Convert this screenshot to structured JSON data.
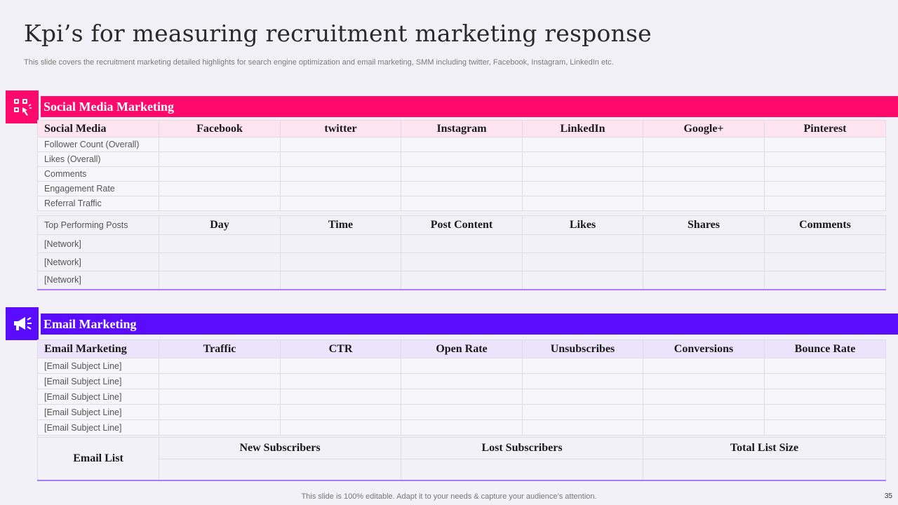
{
  "title": "Kpi’s for measuring recruitment marketing response",
  "subtitle": "This slide covers the recruitment marketing detailed highlights for search engine optimization and email marketing, SMM  including twitter, Facebook, Instagram, LinkedIn etc.",
  "social": {
    "section_label": "Social Media Marketing",
    "icon": "social-network-icon",
    "color": "#ff0a6c",
    "headers": [
      "Social Media",
      "Facebook",
      "twitter",
      "Instagram",
      "LinkedIn",
      "Google+",
      "Pinterest"
    ],
    "rows": [
      "Follower Count (Overall)",
      "Likes (Overall)",
      "Comments",
      "Engagement  Rate",
      "Referral  Traffic"
    ]
  },
  "top_posts": {
    "headers": [
      "Top Performing Posts",
      "Day",
      "Time",
      "Post Content",
      "Likes",
      "Shares",
      "Comments"
    ],
    "rows": [
      "[Network]",
      "[Network]",
      "[Network]"
    ]
  },
  "email": {
    "section_label": "Email Marketing",
    "icon": "megaphone-icon",
    "color": "#5a0cff",
    "headers": [
      "Email Marketing",
      "Traffic",
      "CTR",
      "Open Rate",
      "Unsubscribes",
      "Conversions",
      "Bounce Rate"
    ],
    "rows": [
      "[Email Subject Line]",
      "[Email Subject Line]",
      "[Email Subject Line]",
      "[Email Subject Line]",
      "[Email Subject Line]"
    ]
  },
  "email_list": {
    "label": "Email List",
    "headers": [
      "New Subscribers",
      "Lost Subscribers",
      "Total List Size"
    ]
  },
  "footer": "This slide is 100% editable. Adapt it to your needs & capture your audience’s attention.",
  "page_number": "35"
}
